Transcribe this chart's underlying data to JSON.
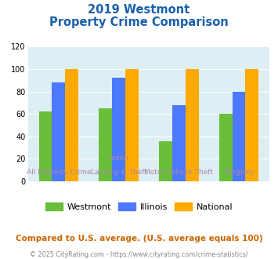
{
  "title_line1": "2019 Westmont",
  "title_line2": "Property Crime Comparison",
  "cat_labels_line1": [
    "All Property Crime",
    "Arson",
    "Motor Vehicle Theft",
    "Burglary"
  ],
  "cat_labels_line2": [
    "",
    "Larceny & Theft",
    "",
    ""
  ],
  "westmont": [
    62,
    65,
    36,
    60
  ],
  "illinois": [
    88,
    92,
    68,
    80
  ],
  "national": [
    100,
    100,
    100,
    100
  ],
  "westmont_color": "#6abf3a",
  "illinois_color": "#4d79ff",
  "national_color": "#ffaa00",
  "bg_color": "#ddeef4",
  "ylim": [
    0,
    120
  ],
  "yticks": [
    0,
    20,
    40,
    60,
    80,
    100,
    120
  ],
  "footnote1": "Compared to U.S. average. (U.S. average equals 100)",
  "footnote2": "© 2025 CityRating.com - https://www.cityrating.com/crime-statistics/",
  "title_color": "#1a5faa",
  "footnote1_color": "#cc6600",
  "footnote2_color": "#888888",
  "label_color": "#aa88aa"
}
